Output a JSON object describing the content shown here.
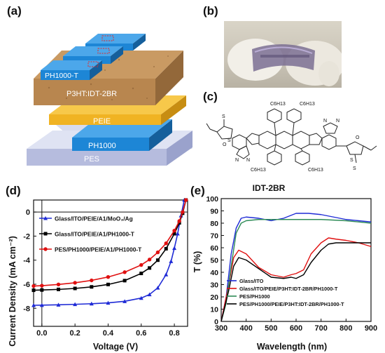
{
  "panels": {
    "a": "(a)",
    "b": "(b)",
    "c": "(c)",
    "d": "(d)",
    "e": "(e)"
  },
  "device_layers": {
    "top_electrode": "PH1000-T",
    "active_layer": "P3HT:IDT-2BR",
    "interlayer": "PEIE",
    "bottom_electrode": "PH1000",
    "substrate": "PES"
  },
  "molecule": {
    "substituents": [
      "C6H13",
      "C6H13",
      "C6H13",
      "C6H13"
    ],
    "atoms": [
      "S",
      "S",
      "N",
      "N",
      "O",
      "O",
      "N",
      "N",
      "S",
      "S"
    ]
  },
  "colors": {
    "blue": "#1f2bd6",
    "black": "#000000",
    "red": "#e01010",
    "green": "#2e8b57"
  },
  "chart_data": [
    {
      "type": "line",
      "panel": "(d)",
      "xlabel": "Voltage (V)",
      "ylabel": "Current Density (mA cm⁻²)",
      "xlim": [
        -0.05,
        0.88
      ],
      "ylim": [
        -9.5,
        1.0
      ],
      "xticks": [
        "0.0",
        "0.2",
        "0.4",
        "0.6",
        "0.8"
      ],
      "yticks": [
        "0",
        "-2",
        "-4",
        "-6",
        "-8"
      ],
      "series": [
        {
          "name": "Glass/ITO/PEIE/A1/MoO₃/Ag",
          "color": "#1f2bd6",
          "marker": "triangle",
          "x": [
            -0.05,
            0.0,
            0.1,
            0.2,
            0.3,
            0.4,
            0.5,
            0.6,
            0.65,
            0.7,
            0.75,
            0.78,
            0.8,
            0.82,
            0.84,
            0.86
          ],
          "y": [
            -7.75,
            -7.74,
            -7.71,
            -7.67,
            -7.62,
            -7.55,
            -7.42,
            -7.15,
            -6.85,
            -6.3,
            -5.2,
            -4.1,
            -3.0,
            -1.8,
            -0.3,
            1.0
          ]
        },
        {
          "name": "Glass/ITO/PEIE/A1/PH1000-T",
          "color": "#000000",
          "marker": "square",
          "x": [
            -0.05,
            0.0,
            0.1,
            0.2,
            0.3,
            0.4,
            0.5,
            0.6,
            0.65,
            0.7,
            0.75,
            0.8,
            0.83,
            0.85,
            0.87
          ],
          "y": [
            -6.5,
            -6.48,
            -6.43,
            -6.35,
            -6.22,
            -6.02,
            -5.7,
            -5.1,
            -4.65,
            -4.0,
            -3.05,
            -1.8,
            -0.9,
            -0.1,
            1.0
          ]
        },
        {
          "name": "PES/PH1000/PEIE/A1/PH1000-T",
          "color": "#e01010",
          "marker": "circle",
          "x": [
            -0.05,
            0.0,
            0.1,
            0.2,
            0.3,
            0.4,
            0.5,
            0.6,
            0.65,
            0.7,
            0.75,
            0.8,
            0.83,
            0.85,
            0.87
          ],
          "y": [
            -6.15,
            -6.12,
            -6.02,
            -5.88,
            -5.68,
            -5.4,
            -5.0,
            -4.4,
            -3.95,
            -3.35,
            -2.6,
            -1.55,
            -0.75,
            0.0,
            1.0
          ]
        }
      ]
    },
    {
      "type": "line",
      "panel": "(e)",
      "title": "IDT-2BR",
      "xlabel": "Wavelength (nm)",
      "ylabel": "T (%)",
      "xlim": [
        300,
        900
      ],
      "ylim": [
        0,
        100
      ],
      "xticks": [
        "300",
        "400",
        "500",
        "600",
        "700",
        "800",
        "900"
      ],
      "yticks": [
        "0",
        "10",
        "20",
        "30",
        "40",
        "50",
        "60",
        "70",
        "80",
        "90",
        "100"
      ],
      "series": [
        {
          "name": "Glass/ITO",
          "color": "#1f2bd6",
          "x": [
            300,
            320,
            340,
            360,
            380,
            400,
            450,
            500,
            550,
            600,
            650,
            700,
            750,
            800,
            850,
            900
          ],
          "y": [
            0,
            20,
            55,
            76,
            84,
            85,
            84,
            82,
            84,
            88,
            88,
            87,
            85,
            83,
            82,
            81
          ]
        },
        {
          "name": "Glass/ITO/PEIE/P3HT:IDT-2BR/PH1000-T",
          "color": "#e01010",
          "x": [
            300,
            330,
            350,
            370,
            400,
            450,
            500,
            550,
            580,
            600,
            630,
            660,
            700,
            730,
            760,
            800,
            850,
            900
          ],
          "y": [
            0,
            30,
            52,
            58,
            55,
            44,
            38,
            36,
            38,
            39,
            42,
            55,
            64,
            68,
            67,
            66,
            64,
            61
          ]
        },
        {
          "name": "PES/PH1000",
          "color": "#2e8b57",
          "x": [
            300,
            320,
            340,
            360,
            380,
            400,
            450,
            500,
            600,
            700,
            800,
            900
          ],
          "y": [
            0,
            15,
            45,
            72,
            80,
            82,
            83,
            83,
            83,
            83,
            82,
            80
          ]
        },
        {
          "name": "PES/PH1000/PEIE/P3HT:IDT-2BR/PH1000-T",
          "color": "#000000",
          "x": [
            300,
            330,
            350,
            370,
            400,
            450,
            500,
            550,
            580,
            600,
            630,
            660,
            700,
            730,
            760,
            800,
            850,
            900
          ],
          "y": [
            0,
            25,
            45,
            52,
            50,
            43,
            36,
            35,
            36,
            35,
            38,
            48,
            58,
            63,
            64,
            64,
            64,
            64
          ]
        }
      ]
    }
  ]
}
